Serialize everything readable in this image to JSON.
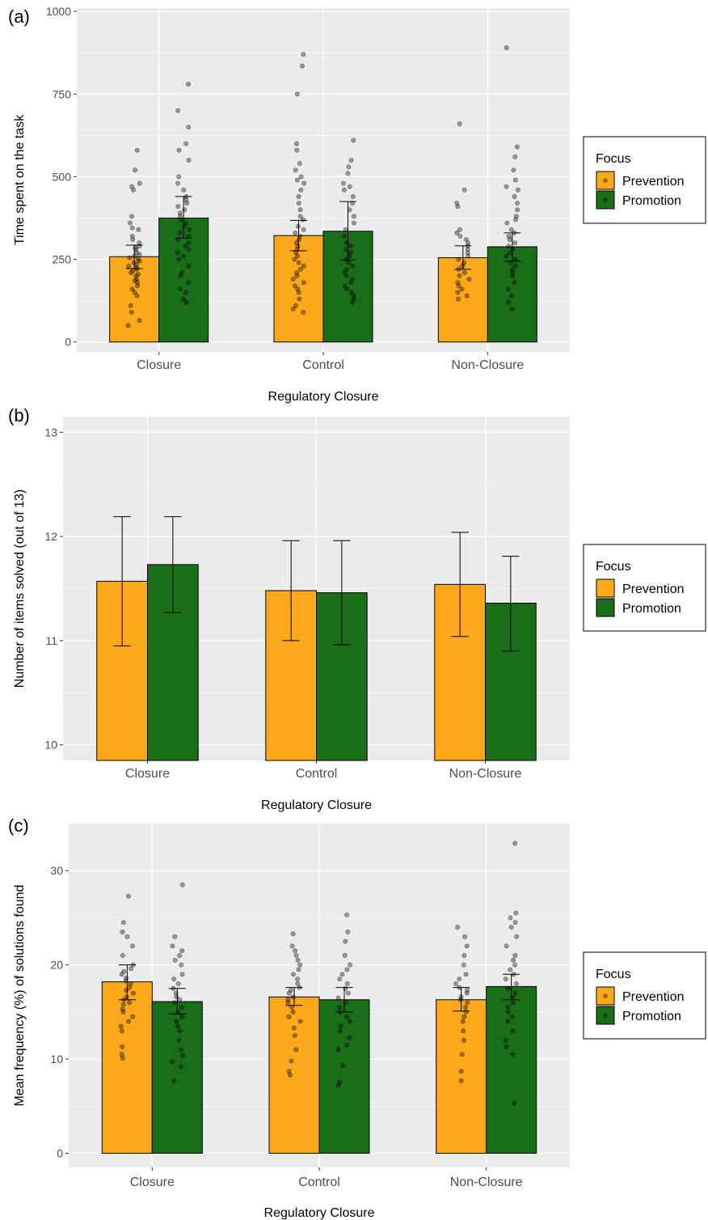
{
  "colors": {
    "prevention": "#FCA81B",
    "promotion": "#1A6E18",
    "panel_bg": "#EBEBEB",
    "grid": "#FFFFFF"
  },
  "chart_data": [
    {
      "panel_label": "(a)",
      "type": "bar",
      "categories": [
        "Closure",
        "Control",
        "Non-Closure"
      ],
      "xlabel": "Regulatory Closure",
      "ylabel": "Time spent on the task",
      "ylim": [
        -30,
        1010
      ],
      "yticks": [
        0,
        250,
        500,
        750,
        1000
      ],
      "series": [
        {
          "name": "Prevention",
          "values": [
            258,
            322,
            255
          ],
          "err_low": [
            222,
            276,
            220
          ],
          "err_high": [
            293,
            368,
            291
          ],
          "points": [
            [
              50,
              65,
              90,
              110,
              140,
              150,
              160,
              170,
              180,
              185,
              190,
              200,
              205,
              210,
              215,
              220,
              225,
              230,
              235,
              240,
              245,
              250,
              255,
              260,
              265,
              270,
              280,
              285,
              290,
              300,
              310,
              320,
              340,
              345,
              360,
              380,
              460,
              470,
              480,
              520,
              580
            ],
            [
              90,
              100,
              110,
              130,
              150,
              160,
              170,
              180,
              190,
              200,
              210,
              220,
              230,
              240,
              250,
              260,
              270,
              280,
              290,
              300,
              310,
              320,
              330,
              340,
              350,
              370,
              380,
              400,
              420,
              440,
              460,
              480,
              490,
              500,
              520,
              540,
              580,
              600,
              750,
              835,
              870
            ],
            [
              130,
              140,
              150,
              160,
              170,
              180,
              190,
              200,
              210,
              220,
              230,
              240,
              250,
              260,
              270,
              280,
              290,
              300,
              310,
              320,
              330,
              340,
              410,
              420,
              460,
              660
            ]
          ]
        },
        {
          "name": "Promotion",
          "values": [
            375,
            335,
            288
          ],
          "err_low": [
            314,
            248,
            244
          ],
          "err_high": [
            440,
            425,
            330
          ],
          "points": [
            [
              120,
              130,
              150,
              160,
              180,
              200,
              210,
              230,
              250,
              260,
              270,
              280,
              290,
              300,
              310,
              320,
              330,
              340,
              350,
              360,
              370,
              380,
              390,
              400,
              410,
              420,
              430,
              440,
              460,
              480,
              500,
              550,
              580,
              600,
              650,
              700,
              780
            ],
            [
              120,
              130,
              140,
              150,
              160,
              170,
              180,
              190,
              200,
              210,
              220,
              230,
              240,
              250,
              260,
              270,
              280,
              290,
              300,
              320,
              340,
              360,
              380,
              400,
              420,
              440,
              460,
              470,
              480,
              510,
              530,
              550,
              610
            ],
            [
              100,
              120,
              140,
              160,
              180,
              200,
              210,
              220,
              230,
              240,
              250,
              260,
              270,
              280,
              290,
              300,
              310,
              320,
              330,
              340,
              360,
              370,
              380,
              400,
              420,
              440,
              460,
              470,
              490,
              520,
              560,
              590,
              890
            ]
          ]
        }
      ],
      "legend": {
        "title": "Focus",
        "entries": [
          "Prevention",
          "Promotion"
        ],
        "position": "right"
      }
    },
    {
      "panel_label": "(b)",
      "type": "bar",
      "categories": [
        "Closure",
        "Control",
        "Non-Closure"
      ],
      "xlabel": "Regulatory Closure",
      "ylabel": "Number of items solved (out of 13)",
      "ylim": [
        9.85,
        13.15
      ],
      "yticks": [
        10,
        11,
        12,
        13
      ],
      "series": [
        {
          "name": "Prevention",
          "values": [
            11.57,
            11.48,
            11.54
          ],
          "err_low": [
            10.95,
            11.0,
            11.04
          ],
          "err_high": [
            12.19,
            11.96,
            12.04
          ]
        },
        {
          "name": "Promotion",
          "values": [
            11.73,
            11.46,
            11.36
          ],
          "err_low": [
            11.27,
            10.96,
            10.9
          ],
          "err_high": [
            12.19,
            11.96,
            11.81
          ]
        }
      ],
      "legend": {
        "title": "Focus",
        "entries": [
          "Prevention",
          "Promotion"
        ],
        "position": "right"
      }
    },
    {
      "panel_label": "(c)",
      "type": "bar",
      "categories": [
        "Closure",
        "Control",
        "Non-Closure"
      ],
      "xlabel": "Regulatory Closure",
      "ylabel": "Mean frequency (%) of solutions found",
      "ylim": [
        -1.5,
        35.0
      ],
      "yticks": [
        0,
        10,
        20,
        30
      ],
      "series": [
        {
          "name": "Prevention",
          "values": [
            18.2,
            16.6,
            16.3
          ],
          "err_low": [
            16.3,
            15.7,
            15.1
          ],
          "err_high": [
            20.0,
            17.6,
            17.6
          ],
          "points": [
            [
              10.1,
              10.5,
              11.3,
              13.0,
              13.5,
              14.0,
              14.5,
              15.0,
              15.3,
              15.8,
              16.0,
              16.3,
              16.6,
              17.0,
              17.3,
              17.6,
              18.0,
              18.3,
              18.6,
              19.0,
              19.3,
              19.6,
              20.0,
              21.0,
              22.0,
              23.0,
              23.5,
              24.5,
              27.3
            ],
            [
              8.3,
              8.7,
              9.8,
              11.0,
              12.5,
              13.3,
              14.0,
              14.5,
              15.0,
              15.5,
              16.0,
              16.3,
              16.6,
              17.0,
              17.3,
              17.6,
              18.0,
              18.5,
              19.0,
              19.5,
              20.0,
              20.5,
              21.0,
              21.5,
              22.0,
              23.3
            ],
            [
              7.7,
              8.7,
              10.5,
              12.0,
              13.0,
              14.0,
              14.5,
              15.0,
              15.5,
              16.0,
              16.3,
              16.6,
              17.0,
              17.3,
              17.6,
              18.0,
              18.5,
              19.0,
              20.0,
              21.0,
              22.0,
              23.0,
              24.0
            ]
          ]
        },
        {
          "name": "Promotion",
          "values": [
            16.1,
            16.3,
            17.7
          ],
          "err_low": [
            14.8,
            15.0,
            16.3
          ],
          "err_high": [
            17.5,
            17.6,
            19.0
          ],
          "points": [
            [
              7.7,
              9.2,
              9.7,
              10.4,
              11.0,
              12.0,
              13.0,
              13.5,
              14.0,
              14.5,
              15.0,
              15.5,
              16.0,
              16.3,
              16.6,
              17.0,
              17.5,
              18.0,
              18.5,
              19.0,
              20.0,
              20.5,
              21.0,
              21.5,
              22.0,
              23.0,
              28.5
            ],
            [
              7.2,
              7.5,
              9.3,
              11.0,
              11.5,
              12.3,
              13.0,
              13.5,
              14.0,
              14.5,
              15.0,
              15.5,
              16.0,
              16.5,
              17.0,
              17.5,
              18.0,
              18.5,
              19.0,
              19.5,
              20.0,
              21.0,
              22.5,
              23.5,
              25.3
            ],
            [
              5.3,
              10.5,
              11.3,
              12.0,
              13.0,
              14.0,
              14.5,
              15.0,
              15.5,
              16.0,
              16.5,
              17.0,
              17.5,
              18.0,
              18.5,
              19.0,
              19.5,
              20.0,
              20.5,
              21.0,
              22.0,
              23.0,
              24.0,
              24.5,
              25.0,
              25.5,
              32.9
            ]
          ]
        }
      ],
      "legend": {
        "title": "Focus",
        "entries": [
          "Prevention",
          "Promotion"
        ],
        "position": "right"
      }
    }
  ]
}
